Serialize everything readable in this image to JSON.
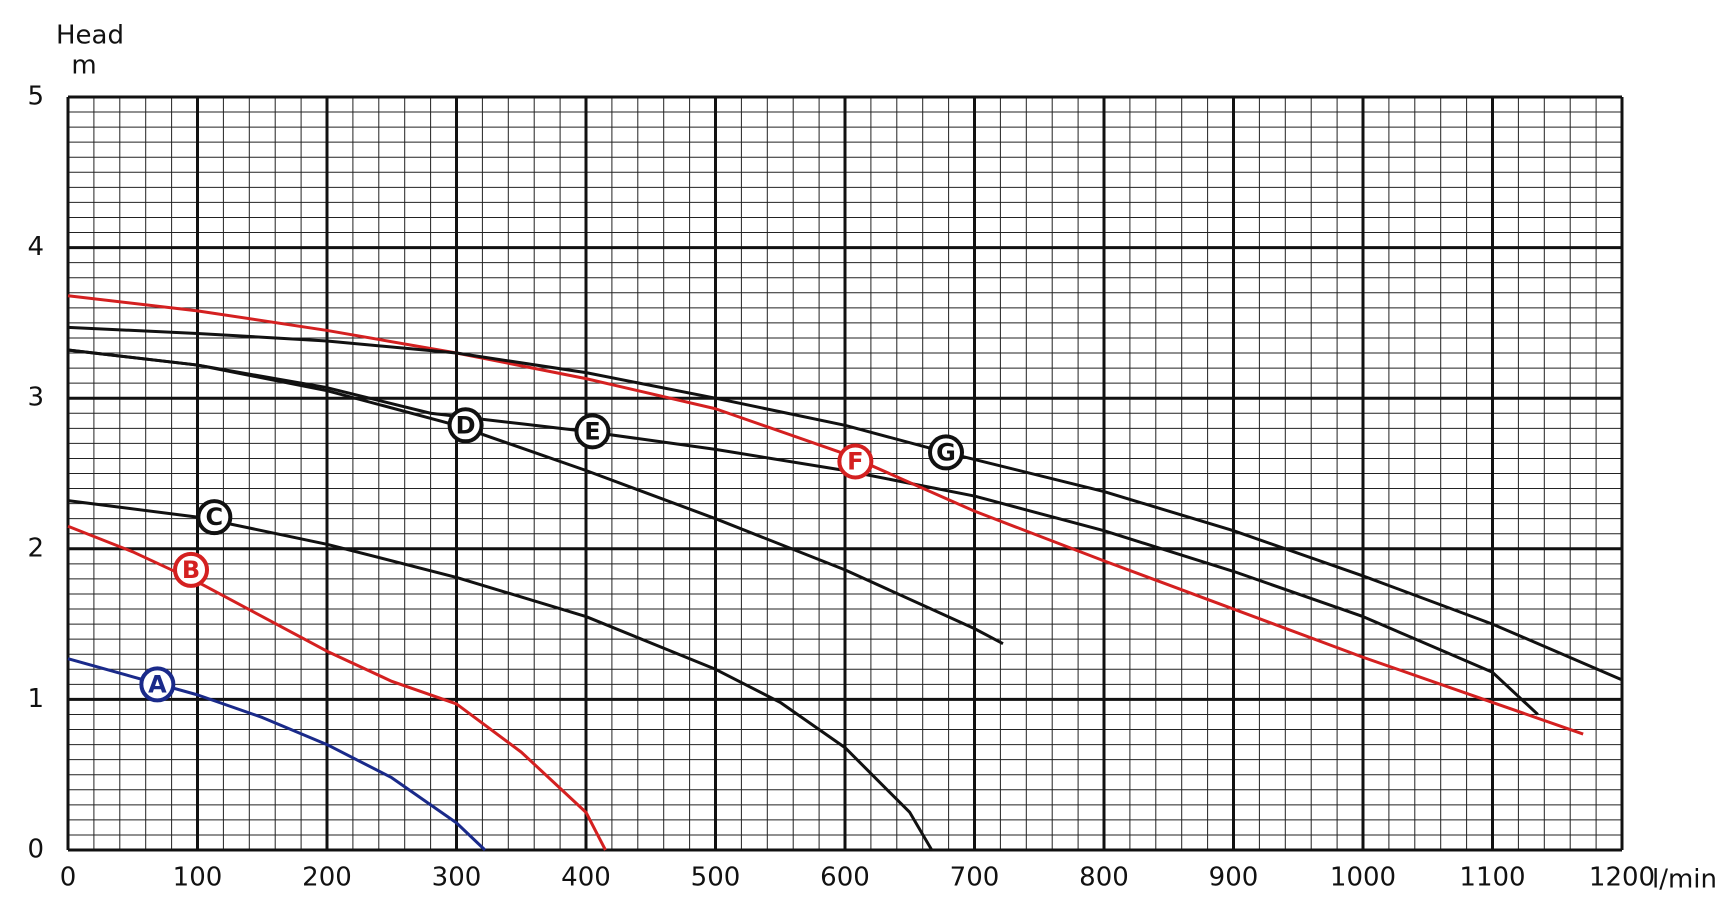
{
  "chart_data": {
    "type": "line",
    "y_label_line1": "Head",
    "y_label_line2": "m",
    "x_label": "l/min",
    "xlim": [
      0,
      1200
    ],
    "ylim": [
      0,
      5
    ],
    "xticks": [
      0,
      100,
      200,
      300,
      400,
      500,
      600,
      700,
      800,
      900,
      1000,
      1100,
      1200
    ],
    "yticks": [
      0,
      1,
      2,
      3,
      4,
      5
    ],
    "grid": true,
    "series": [
      {
        "name": "A",
        "color": "#1a2a8a",
        "x": [
          0,
          50,
          100,
          150,
          200,
          250,
          300,
          322
        ],
        "values": [
          1.27,
          1.15,
          1.03,
          0.88,
          0.7,
          0.48,
          0.18,
          0
        ]
      },
      {
        "name": "B",
        "color": "#d42020",
        "x": [
          0,
          50,
          100,
          150,
          200,
          250,
          300,
          350,
          400,
          415
        ],
        "values": [
          2.15,
          1.98,
          1.78,
          1.55,
          1.32,
          1.12,
          0.97,
          0.65,
          0.25,
          0
        ]
      },
      {
        "name": "C",
        "color": "#111111",
        "x": [
          0,
          100,
          200,
          300,
          400,
          500,
          550,
          600,
          650,
          667
        ],
        "values": [
          2.32,
          2.21,
          2.03,
          1.81,
          1.55,
          1.2,
          0.98,
          0.68,
          0.25,
          0
        ]
      },
      {
        "name": "D",
        "color": "#111111",
        "x": [
          0,
          100,
          200,
          300,
          400,
          500,
          600,
          700,
          722
        ],
        "values": [
          3.32,
          3.22,
          3.05,
          2.82,
          2.52,
          2.2,
          1.86,
          1.47,
          1.37
        ]
      },
      {
        "name": "E",
        "color": "#111111",
        "x": [
          0,
          100,
          200,
          280,
          350,
          400,
          500,
          600,
          700,
          800,
          900,
          1000,
          1100,
          1135
        ],
        "values": [
          3.32,
          3.22,
          3.07,
          2.9,
          2.83,
          2.78,
          2.66,
          2.52,
          2.35,
          2.12,
          1.85,
          1.55,
          1.18,
          0.9
        ]
      },
      {
        "name": "F",
        "color": "#d42020",
        "x": [
          0,
          100,
          200,
          300,
          400,
          500,
          600,
          700,
          800,
          900,
          1000,
          1100,
          1170
        ],
        "values": [
          3.68,
          3.58,
          3.45,
          3.3,
          3.13,
          2.93,
          2.63,
          2.25,
          1.92,
          1.6,
          1.28,
          0.98,
          0.77
        ]
      },
      {
        "name": "G",
        "color": "#111111",
        "x": [
          0,
          100,
          200,
          300,
          400,
          500,
          600,
          678,
          800,
          900,
          1000,
          1100,
          1200
        ],
        "values": [
          3.47,
          3.43,
          3.38,
          3.3,
          3.17,
          3.0,
          2.82,
          2.64,
          2.38,
          2.12,
          1.82,
          1.5,
          1.13
        ]
      }
    ],
    "annotations": [
      {
        "text": "A",
        "x": 69,
        "y": 1.1
      },
      {
        "text": "B",
        "x": 95,
        "y": 1.86
      },
      {
        "text": "C",
        "x": 113,
        "y": 2.21
      },
      {
        "text": "D",
        "x": 307,
        "y": 2.82
      },
      {
        "text": "E",
        "x": 405,
        "y": 2.78
      },
      {
        "text": "F",
        "x": 608,
        "y": 2.58
      },
      {
        "text": "G",
        "x": 678,
        "y": 2.64
      }
    ]
  }
}
